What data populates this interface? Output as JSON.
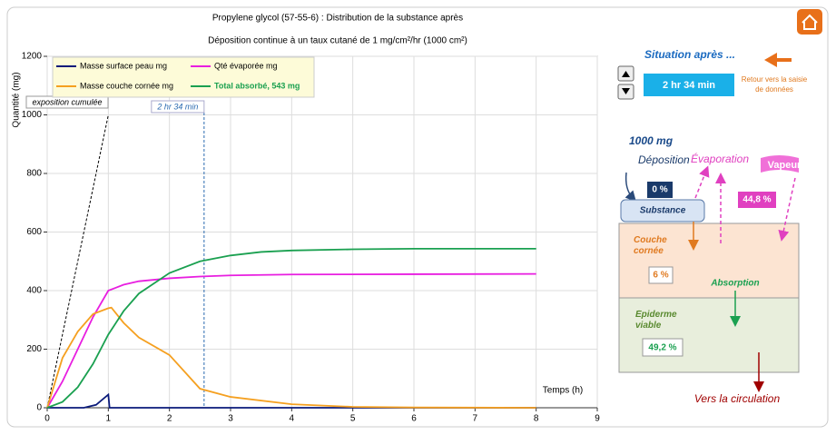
{
  "chart_data": {
    "type": "line",
    "title": "Propylene glycol (57-55-6) : Distribution de la substance après",
    "subtitle": "Déposition  continue à un taux cutané de 1 mg/cm²/hr (1000 cm²)",
    "y_label": "Quantité  (mg)",
    "x_label": "Temps  (h)",
    "xlim": [
      0,
      9
    ],
    "xticks": [
      0,
      1,
      2,
      3,
      4,
      5,
      6,
      7,
      8,
      9
    ],
    "ylim": [
      0,
      1200
    ],
    "yticks": [
      0,
      200,
      400,
      600,
      800,
      1000,
      1200
    ],
    "grid": true,
    "series": [
      {
        "name": "Masse surface peau mg",
        "color": "#0a1a7a",
        "x": [
          0,
          0.6,
          0.8,
          1.0,
          1.02,
          8
        ],
        "values": [
          0,
          0,
          10,
          45,
          0,
          0
        ]
      },
      {
        "name": "Qté évaporée mg",
        "color": "#e81ee0",
        "x": [
          0,
          0.25,
          0.5,
          0.75,
          1,
          1.25,
          1.5,
          2,
          2.5,
          3,
          4,
          6,
          8
        ],
        "values": [
          0,
          90,
          200,
          310,
          400,
          420,
          432,
          442,
          448,
          452,
          455,
          456,
          457
        ]
      },
      {
        "name": "Masse couche cornée mg",
        "color": "#f5a020",
        "x": [
          0,
          0.25,
          0.5,
          0.75,
          1,
          1.05,
          1.25,
          1.5,
          2,
          2.5,
          3,
          4,
          5,
          6,
          8
        ],
        "values": [
          0,
          170,
          260,
          320,
          340,
          342,
          290,
          240,
          180,
          65,
          37,
          12,
          3,
          1,
          0
        ]
      },
      {
        "name": "Total absorbé, 543 mg",
        "color": "#1aa050",
        "x": [
          0,
          0.25,
          0.5,
          0.75,
          1,
          1.25,
          1.5,
          2,
          2.5,
          3,
          3.5,
          4,
          5,
          6,
          8
        ],
        "values": [
          0,
          20,
          70,
          150,
          250,
          330,
          390,
          460,
          500,
          520,
          532,
          537,
          541,
          543,
          543
        ]
      }
    ],
    "exposure_line": {
      "label": "exposition cumulée",
      "color": "#000000",
      "x": [
        0,
        1
      ],
      "values": [
        0,
        1000
      ]
    },
    "time_marker": {
      "label": "2 hr 34 min",
      "x": 2.567,
      "color": "#2a6ab0"
    }
  },
  "panel": {
    "situation": "Situation  après ...",
    "time": "2 hr 34 min",
    "back": "Retour vers la saisie de données",
    "dose": "1000 mg",
    "deposition": "Déposition",
    "evaporation": "Évaporation",
    "vapeur": "Vapeur",
    "surface_pct": "0 %",
    "vapeur_pct": "44,8 %",
    "substance": "Substance",
    "couche": "Couche cornée",
    "couche_pct": "6 %",
    "absorption": "Absorption",
    "epiderme": "Épiderme viable",
    "epiderme_pct": "49,2 %",
    "circulation": "Vers la circulation"
  }
}
